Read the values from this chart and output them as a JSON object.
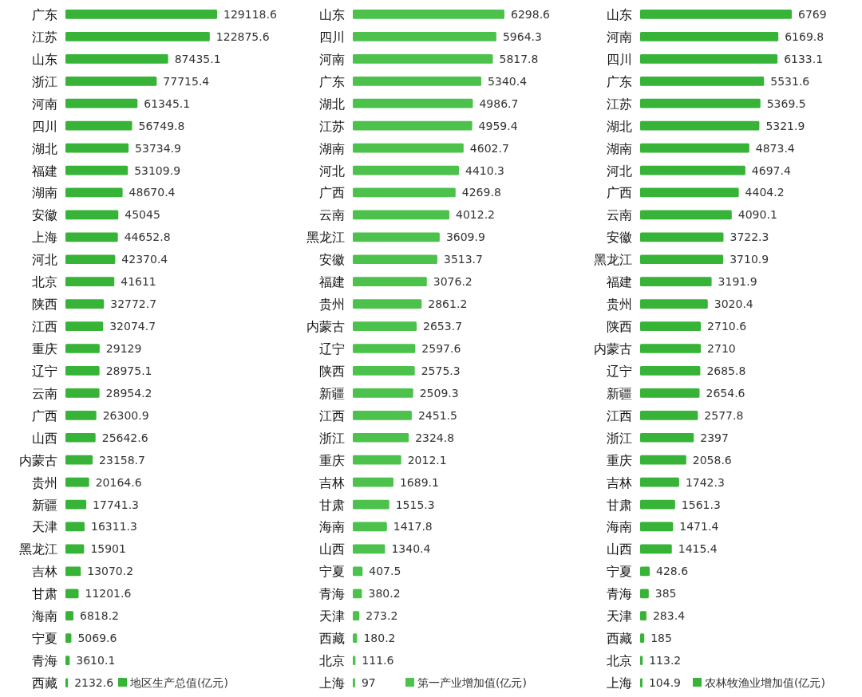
{
  "chart_data": [
    {
      "type": "bar",
      "orientation": "horizontal",
      "data_labels": true,
      "legend": "bottom right",
      "categories": [
        "广东",
        "江苏",
        "山东",
        "浙江",
        "河南",
        "四川",
        "湖北",
        "福建",
        "湖南",
        "安徽",
        "上海",
        "河北",
        "北京",
        "陕西",
        "江西",
        "重庆",
        "辽宁",
        "云南",
        "广西",
        "山西",
        "内蒙古",
        "贵州",
        "新疆",
        "天津",
        "黑龙江",
        "吉林",
        "甘肃",
        "海南",
        "宁夏",
        "青海",
        "西藏"
      ],
      "series": [
        {
          "name": "地区生产总值(亿元)",
          "color": "#37b337",
          "values": [
            129118.6,
            122875.6,
            87435.1,
            77715.4,
            61345.1,
            56749.8,
            53734.9,
            53109.9,
            48670.4,
            45045,
            44652.8,
            42370.4,
            41611,
            32772.7,
            32074.7,
            29129,
            28975.1,
            28954.2,
            26300.9,
            25642.6,
            23158.7,
            20164.6,
            17741.3,
            16311.3,
            15901,
            13070.2,
            11201.6,
            6818.2,
            5069.6,
            3610.1,
            2132.6
          ]
        }
      ]
    },
    {
      "type": "bar",
      "orientation": "horizontal",
      "data_labels": true,
      "legend": "bottom right",
      "categories": [
        "山东",
        "四川",
        "河南",
        "广东",
        "湖北",
        "江苏",
        "湖南",
        "河北",
        "广西",
        "云南",
        "黑龙江",
        "安徽",
        "福建",
        "贵州",
        "内蒙古",
        "辽宁",
        "陕西",
        "新疆",
        "江西",
        "浙江",
        "重庆",
        "吉林",
        "甘肃",
        "海南",
        "山西",
        "宁夏",
        "青海",
        "天津",
        "西藏",
        "北京",
        "上海"
      ],
      "series": [
        {
          "name": "第一产业增加值(亿元)",
          "color": "#4cc24c",
          "values": [
            6298.6,
            5964.3,
            5817.8,
            5340.4,
            4986.7,
            4959.4,
            4602.7,
            4410.3,
            4269.8,
            4012.2,
            3609.9,
            3513.7,
            3076.2,
            2861.2,
            2653.7,
            2597.6,
            2575.3,
            2509.3,
            2451.5,
            2324.8,
            2012.1,
            1689.1,
            1515.3,
            1417.8,
            1340.4,
            407.5,
            380.2,
            273.2,
            180.2,
            111.6,
            97
          ]
        }
      ]
    },
    {
      "type": "bar",
      "orientation": "horizontal",
      "data_labels": true,
      "legend": "bottom right",
      "categories": [
        "山东",
        "河南",
        "四川",
        "广东",
        "江苏",
        "湖北",
        "湖南",
        "河北",
        "广西",
        "云南",
        "安徽",
        "黑龙江",
        "福建",
        "贵州",
        "陕西",
        "内蒙古",
        "辽宁",
        "新疆",
        "江西",
        "浙江",
        "重庆",
        "吉林",
        "甘肃",
        "海南",
        "山西",
        "宁夏",
        "青海",
        "天津",
        "西藏",
        "北京",
        "上海"
      ],
      "series": [
        {
          "name": "农林牧渔业增加值(亿元)",
          "color": "#37b337",
          "values": [
            6769,
            6169.8,
            6133.1,
            5531.6,
            5369.5,
            5321.9,
            4873.4,
            4697.4,
            4404.2,
            4090.1,
            3722.3,
            3710.9,
            3191.9,
            3020.4,
            2710.6,
            2710,
            2685.8,
            2654.6,
            2577.8,
            2397,
            2058.6,
            1742.3,
            1561.3,
            1471.4,
            1415.4,
            428.6,
            385,
            283.4,
            185,
            113.2,
            104.9
          ]
        }
      ]
    }
  ]
}
